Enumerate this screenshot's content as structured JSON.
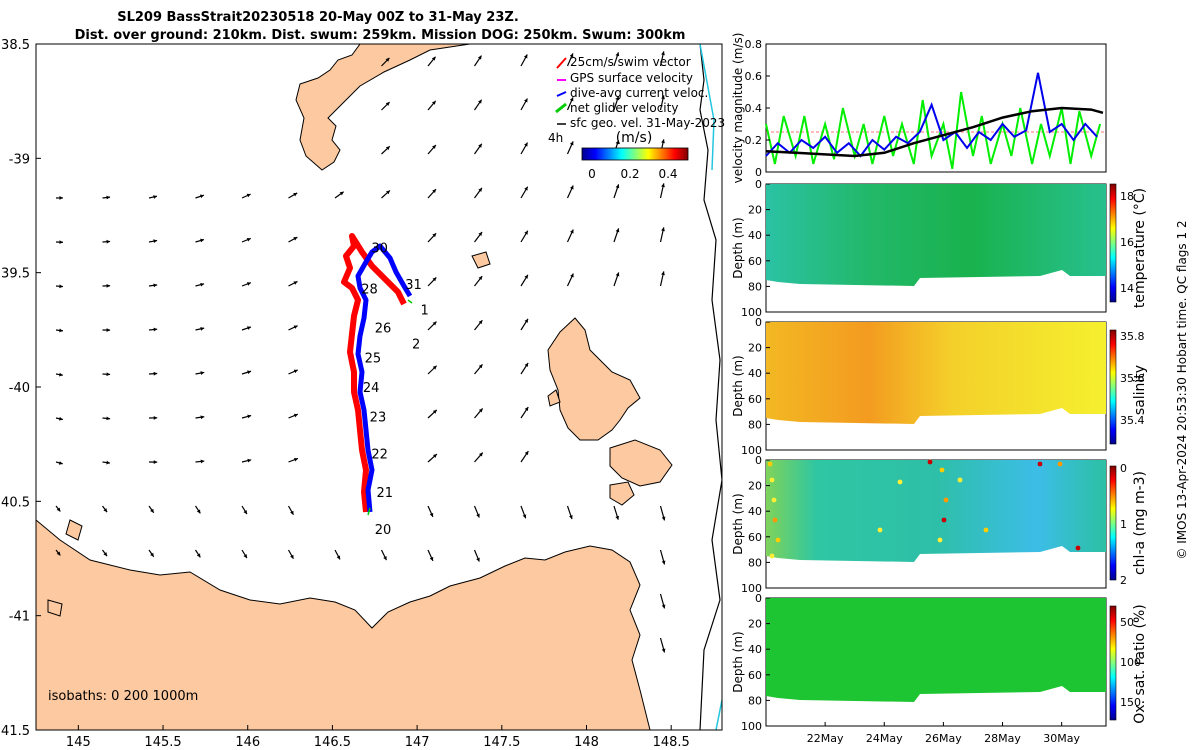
{
  "header": {
    "title_line1": "SL209 BassStrait20230518 20-May 00Z to 31-May 23Z.",
    "title_line2": "Dist. over ground: 210km. Dist. swum: 259km. Mission DOG: 250km. Swum: 300km"
  },
  "chart_data": [
    {
      "type": "map",
      "lon_ticks": [
        "145",
        "145.5",
        "146",
        "146.5",
        "147",
        "147.5",
        "148",
        "148.5"
      ],
      "lat_ticks": [
        "38.5",
        "-39",
        "39.5",
        "-40",
        "40.5",
        "-41",
        "41.5"
      ],
      "xlim": [
        144.75,
        148.8
      ],
      "ylim": [
        -41.5,
        -38.5
      ],
      "legend": {
        "items": [
          {
            "label": "25cm/s swim vector",
            "color": "#d62728"
          },
          {
            "label": "GPS surface velocity",
            "color": "#ff00ff"
          },
          {
            "label": "dive-avg current veloc.",
            "color": "#0000ff"
          },
          {
            "label": "net glider velocity",
            "color": "#00cc00"
          },
          {
            "label": "sfc geo. vel. 31-May-2023",
            "color": "#000000"
          }
        ],
        "time_label": "4h",
        "colorbar_label": "(m/s)",
        "colorbar_ticks": [
          "0",
          "0.2",
          "0.4"
        ]
      },
      "day_labels": [
        {
          "day": "20",
          "lon": 146.75,
          "lat": -40.62
        },
        {
          "day": "21",
          "lon": 146.76,
          "lat": -40.46
        },
        {
          "day": "22",
          "lon": 146.73,
          "lat": -40.29
        },
        {
          "day": "23",
          "lon": 146.72,
          "lat": -40.13
        },
        {
          "day": "24",
          "lon": 146.68,
          "lat": -40.0
        },
        {
          "day": "25",
          "lon": 146.69,
          "lat": -39.87
        },
        {
          "day": "26",
          "lon": 146.75,
          "lat": -39.74
        },
        {
          "day": "28",
          "lon": 146.67,
          "lat": -39.57
        },
        {
          "day": "30",
          "lon": 146.73,
          "lat": -39.39
        },
        {
          "day": "31",
          "lon": 146.93,
          "lat": -39.55
        },
        {
          "day": "1",
          "lon": 147.02,
          "lat": -39.66
        },
        {
          "day": "2",
          "lon": 146.97,
          "lat": -39.81
        }
      ],
      "isobath_label": "isobaths: 0   200  1000m"
    },
    {
      "type": "line",
      "ylabel": "velocity magnitude (m/s)",
      "ylim": [
        0,
        0.8
      ],
      "yticks": [
        "0",
        "0.2",
        "0.4",
        "0.6",
        "0.8"
      ],
      "series": [
        {
          "color": "#000000",
          "x": [
            20.0,
            21.0,
            22.0,
            23.0,
            24.0,
            25.0,
            26.0,
            27.0,
            28.0,
            29.0,
            30.0,
            31.0,
            31.4
          ],
          "y": [
            0.13,
            0.12,
            0.11,
            0.1,
            0.12,
            0.18,
            0.23,
            0.28,
            0.34,
            0.38,
            0.4,
            0.39,
            0.37
          ]
        },
        {
          "color": "#00ee00",
          "x": [
            20.0,
            20.3,
            20.6,
            21.0,
            21.3,
            21.6,
            22.0,
            22.3,
            22.6,
            23.0,
            23.3,
            23.6,
            24.0,
            24.3,
            24.6,
            25.0,
            25.3,
            25.6,
            26.0,
            26.3,
            26.6,
            27.0,
            27.3,
            27.6,
            28.0,
            28.3,
            28.6,
            29.0,
            29.3,
            29.6,
            30.0,
            30.3,
            30.6,
            31.0,
            31.3
          ],
          "y": [
            0.3,
            0.05,
            0.35,
            0.1,
            0.35,
            0.05,
            0.3,
            0.08,
            0.4,
            0.1,
            0.3,
            0.05,
            0.35,
            0.1,
            0.3,
            0.05,
            0.45,
            0.1,
            0.3,
            0.02,
            0.5,
            0.1,
            0.35,
            0.05,
            0.3,
            0.1,
            0.4,
            0.05,
            0.3,
            0.1,
            0.4,
            0.05,
            0.38,
            0.1,
            0.3
          ]
        },
        {
          "color": "#0000ee",
          "x": [
            20.0,
            20.4,
            20.8,
            21.2,
            21.6,
            22.0,
            22.4,
            22.8,
            23.2,
            23.6,
            24.0,
            24.4,
            24.8,
            25.2,
            25.6,
            26.0,
            26.4,
            26.8,
            27.2,
            27.6,
            28.0,
            28.4,
            28.8,
            29.2,
            29.6,
            30.0,
            30.4,
            30.8,
            31.2
          ],
          "y": [
            0.1,
            0.18,
            0.12,
            0.2,
            0.15,
            0.22,
            0.12,
            0.18,
            0.1,
            0.2,
            0.14,
            0.22,
            0.18,
            0.25,
            0.42,
            0.2,
            0.25,
            0.15,
            0.25,
            0.2,
            0.3,
            0.22,
            0.26,
            0.62,
            0.25,
            0.3,
            0.2,
            0.3,
            0.22
          ]
        }
      ]
    },
    {
      "type": "heatmap",
      "ylabel": "Depth (m)",
      "yticks": [
        "0",
        "20",
        "40",
        "60",
        "80",
        "100"
      ],
      "colorbar_label": "temperature (°C)",
      "colorbar_ticks": [
        "14",
        "16",
        "18"
      ],
      "colormap": "jet"
    },
    {
      "type": "heatmap",
      "ylabel": "Depth (m)",
      "yticks": [
        "0",
        "20",
        "40",
        "60",
        "80",
        "100"
      ],
      "colorbar_label": "salinity",
      "colorbar_ticks": [
        "35.4",
        "35.6",
        "35.8"
      ],
      "colormap": "jet"
    },
    {
      "type": "heatmap",
      "ylabel": "Depth (m)",
      "yticks": [
        "0",
        "20",
        "40",
        "60",
        "80",
        "100"
      ],
      "colorbar_label": "chl-a (mg m-3)",
      "colorbar_ticks": [
        "0",
        "1",
        "2"
      ],
      "colormap": "jet"
    },
    {
      "type": "heatmap",
      "ylabel": "Depth (m)",
      "yticks": [
        "0",
        "20",
        "40",
        "60",
        "80",
        "100"
      ],
      "colorbar_label": "Ox. sat. ratio (%)",
      "colorbar_ticks": [
        "50",
        "100",
        "150"
      ],
      "colormap": "jet",
      "xticks": [
        "22May",
        "24May",
        "26May",
        "28May",
        "30May"
      ]
    }
  ],
  "side_note": "© IMOS 13-Apr-2024 20:53:30 Hobart time. QC flags 1  2"
}
